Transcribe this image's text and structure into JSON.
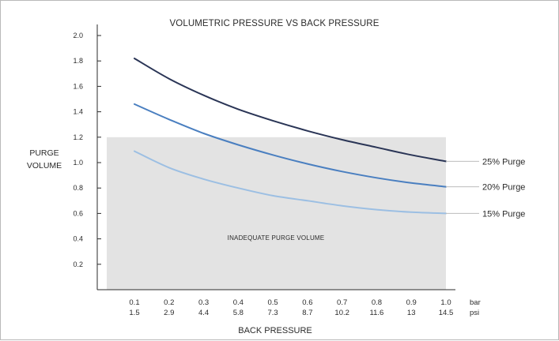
{
  "chart_data": {
    "type": "line",
    "title": "VOLUMETRIC PRESSURE VS BACK PRESSURE",
    "ylabel_lines": [
      "PURGE",
      "VOLUME"
    ],
    "xlabel": "BACK PRESSURE",
    "ylim": [
      0,
      2.0
    ],
    "xlim": [
      0.1,
      1.0
    ],
    "yticks": [
      "0.2",
      "0.4",
      "0.6",
      "0.8",
      "1.0",
      "1.2",
      "1.4",
      "1.6",
      "1.8",
      "2.0"
    ],
    "x_bar_ticks": [
      "0.1",
      "0.2",
      "0.3",
      "0.4",
      "0.5",
      "0.6",
      "0.7",
      "0.8",
      "0.9",
      "1.0"
    ],
    "x_psi_ticks": [
      "1.5",
      "2.9",
      "4.4",
      "5.8",
      "7.3",
      "8.7",
      "10.2",
      "11.6",
      "13",
      "14.5"
    ],
    "x_units": [
      "bar",
      "psi"
    ],
    "grid": false,
    "shaded_region": {
      "label": "INADEQUATE PURGE VOLUME",
      "y_range": [
        0,
        1.2
      ],
      "x_range": [
        0.1,
        1.0
      ],
      "color": "#e3e3e3"
    },
    "x": [
      0.1,
      0.2,
      0.3,
      0.4,
      0.5,
      0.6,
      0.7,
      0.8,
      0.9,
      1.0
    ],
    "series": [
      {
        "name": "25% Purge",
        "color": "#2a3556",
        "values": [
          1.82,
          1.66,
          1.53,
          1.42,
          1.33,
          1.25,
          1.18,
          1.12,
          1.06,
          1.01
        ]
      },
      {
        "name": "20% Purge",
        "color": "#4a7fc0",
        "values": [
          1.46,
          1.34,
          1.23,
          1.14,
          1.06,
          0.99,
          0.93,
          0.88,
          0.84,
          0.81
        ]
      },
      {
        "name": "15% Purge",
        "color": "#9cbfe3",
        "values": [
          1.09,
          0.96,
          0.87,
          0.8,
          0.74,
          0.7,
          0.66,
          0.63,
          0.61,
          0.6
        ]
      }
    ]
  }
}
